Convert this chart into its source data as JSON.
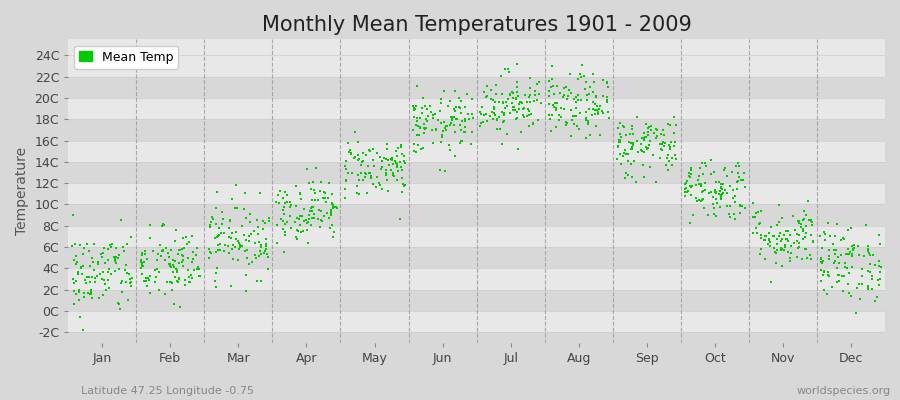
{
  "title": "Monthly Mean Temperatures 1901 - 2009",
  "ylabel": "Temperature",
  "xlabel_labels": [
    "Jan",
    "Feb",
    "Mar",
    "Apr",
    "May",
    "Jun",
    "Jul",
    "Aug",
    "Sep",
    "Oct",
    "Nov",
    "Dec"
  ],
  "ytick_labels": [
    "-2C",
    "0C",
    "2C",
    "4C",
    "6C",
    "8C",
    "10C",
    "12C",
    "14C",
    "16C",
    "18C",
    "20C",
    "22C",
    "24C"
  ],
  "ytick_values": [
    -2,
    0,
    2,
    4,
    6,
    8,
    10,
    12,
    14,
    16,
    18,
    20,
    22,
    24
  ],
  "ylim": [
    -3,
    25.5
  ],
  "xlim": [
    0,
    12
  ],
  "dot_color": "#00cc00",
  "fig_bg_color": "#d8d8d8",
  "plot_bg_color": "#e8e8e8",
  "band_color_dark": "#d8d8d8",
  "band_color_light": "#e8e8e8",
  "dashed_line_color": "#999999",
  "legend_label": "Mean Temp",
  "subtitle_left": "Latitude 47.25 Longitude -0.75",
  "subtitle_right": "worldspecies.org",
  "title_fontsize": 15,
  "label_fontsize": 10,
  "tick_fontsize": 9,
  "monthly_means": [
    3.5,
    4.2,
    6.8,
    9.5,
    13.5,
    17.5,
    19.5,
    19.2,
    15.5,
    11.5,
    7.0,
    4.5
  ],
  "monthly_stds": [
    2.0,
    1.8,
    1.8,
    1.5,
    1.4,
    1.5,
    1.5,
    1.5,
    1.5,
    1.5,
    1.5,
    1.8
  ],
  "n_years": 109,
  "seed": 42,
  "dot_size": 3,
  "dot_marker": "s"
}
